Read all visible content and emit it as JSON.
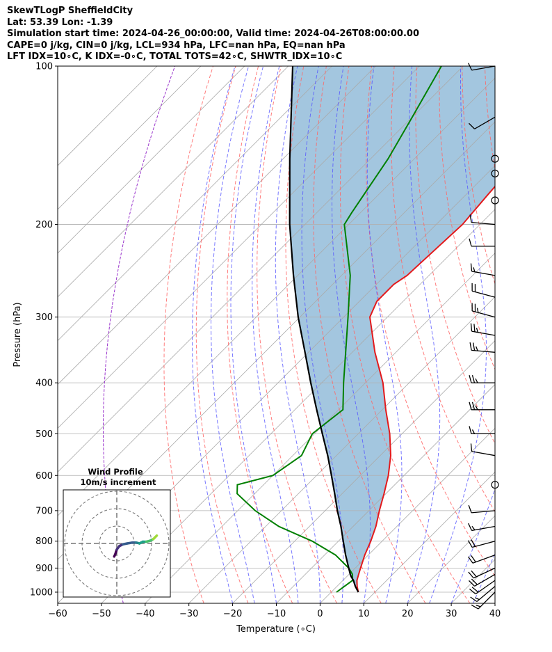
{
  "header": {
    "line1": "SkewTLogP SheffieldCity",
    "line2": "Lat: 53.39   Lon: -1.39",
    "line3": "Simulation start time: 2024-04-26_00:00:00, Valid time: 2024-04-26T08:00:00.00",
    "line4": "CAPE=0 j/kg, CIN=0 j/kg, LCL=934 hPa, LFC=nan hPa, EQ=nan hPa",
    "line5": "LFT IDX=10∘C, K IDX=-0∘C, TOTAL TOTS=42∘C, SHWTR_IDX=10∘C"
  },
  "chart_data": {
    "type": "line",
    "xlabel": "Temperature (∘C)",
    "ylabel": "Pressure (hPa)",
    "xlim": [
      -60,
      40
    ],
    "ylim": [
      1050,
      100
    ],
    "yscale": "log",
    "skew": 45,
    "grid": true,
    "x_ticks": [
      -60,
      -50,
      -40,
      -30,
      -20,
      -10,
      0,
      10,
      20,
      30,
      40
    ],
    "y_ticks": [
      1000,
      900,
      800,
      700,
      600,
      500,
      400,
      300,
      200,
      100
    ],
    "colors": {
      "temperature": "#e31a1c",
      "dewpoint": "#008000",
      "parcel": "#000000",
      "shade": "#a3c6df",
      "dry_adiabat": "#ff6666",
      "moist_adiabat": "#5555ff",
      "mixing_ratio": "#7777ee",
      "isotherm": "#aaaaaa"
    },
    "temperature_profile": {
      "pressure": [
        1000,
        975,
        950,
        925,
        900,
        850,
        800,
        750,
        700,
        650,
        600,
        550,
        500,
        450,
        400,
        350,
        300,
        280,
        260,
        250,
        200,
        175,
        150,
        125,
        100
      ],
      "temperature": [
        6.2,
        4.6,
        3.2,
        2.2,
        1.2,
        -0.8,
        -2.6,
        -4.8,
        -7.6,
        -10.4,
        -13.6,
        -17.6,
        -22.8,
        -29.2,
        -36.0,
        -44.8,
        -54.0,
        -56.0,
        -56.0,
        -55.0,
        -54.0,
        -55.0,
        -56.0,
        -57.0,
        -57.5
      ]
    },
    "dewpoint_profile": {
      "pressure": [
        1000,
        975,
        950,
        925,
        900,
        850,
        800,
        750,
        700,
        650,
        625,
        600,
        550,
        500,
        450,
        400,
        350,
        300,
        250,
        200,
        190,
        150,
        125,
        100
      ],
      "dewpoint": [
        1.2,
        1.7,
        2.2,
        0.8,
        -1.5,
        -7.5,
        -16.0,
        -27.0,
        -36.0,
        -44.0,
        -46.0,
        -40.0,
        -38.0,
        -40.5,
        -39.0,
        -45.0,
        -51.5,
        -59.0,
        -68.0,
        -81.0,
        -82.0,
        -86.0,
        -90.0,
        -95.0
      ]
    },
    "parcel_profile": {
      "pressure": [
        1000,
        975,
        950,
        934,
        925,
        900,
        850,
        800,
        750,
        700,
        650,
        600,
        550,
        500,
        450,
        400,
        350,
        300,
        250,
        200,
        150,
        100
      ],
      "temperature": [
        6.2,
        4.2,
        2.4,
        1.0,
        0.3,
        -1.5,
        -5.2,
        -8.9,
        -12.8,
        -17.2,
        -21.7,
        -26.6,
        -32.0,
        -38.2,
        -45.0,
        -52.5,
        -60.8,
        -70.4,
        -81.0,
        -93.5,
        -108.5,
        -129.0
      ]
    },
    "wind_barbs": {
      "pressure": [
        1000,
        975,
        950,
        925,
        900,
        850,
        800,
        750,
        700,
        625,
        550,
        500,
        450,
        400,
        350,
        325,
        300,
        275,
        250,
        220,
        200,
        180,
        160,
        150,
        125,
        100
      ],
      "direction_deg": [
        225,
        230,
        235,
        240,
        245,
        250,
        255,
        260,
        265,
        0,
        280,
        270,
        270,
        270,
        275,
        280,
        285,
        285,
        280,
        270,
        275,
        0,
        0,
        0,
        240,
        260
      ],
      "speed_kt": [
        15,
        15,
        20,
        20,
        20,
        20,
        20,
        15,
        10,
        0,
        10,
        15,
        25,
        25,
        25,
        25,
        25,
        20,
        15,
        10,
        10,
        0,
        0,
        0,
        10,
        10
      ]
    },
    "inset": {
      "title": "Wind Profile",
      "subtitle": "10m/s increment",
      "rings_ms": [
        10,
        20,
        30
      ],
      "u_ms": [
        -1.5,
        -1.0,
        -0.5,
        0.0,
        1.5,
        3.5,
        6.0,
        9.0,
        11.0,
        12.0,
        13.0,
        14.0,
        15.0,
        17.0,
        19.0,
        21.0,
        22.0,
        23.0
      ],
      "v_ms": [
        -7.5,
        -6.5,
        -5.0,
        -3.5,
        -1.5,
        -0.5,
        0.0,
        0.5,
        0.5,
        0.3,
        0.0,
        0.5,
        1.0,
        1.0,
        1.5,
        2.5,
        3.5,
        4.5
      ]
    }
  }
}
